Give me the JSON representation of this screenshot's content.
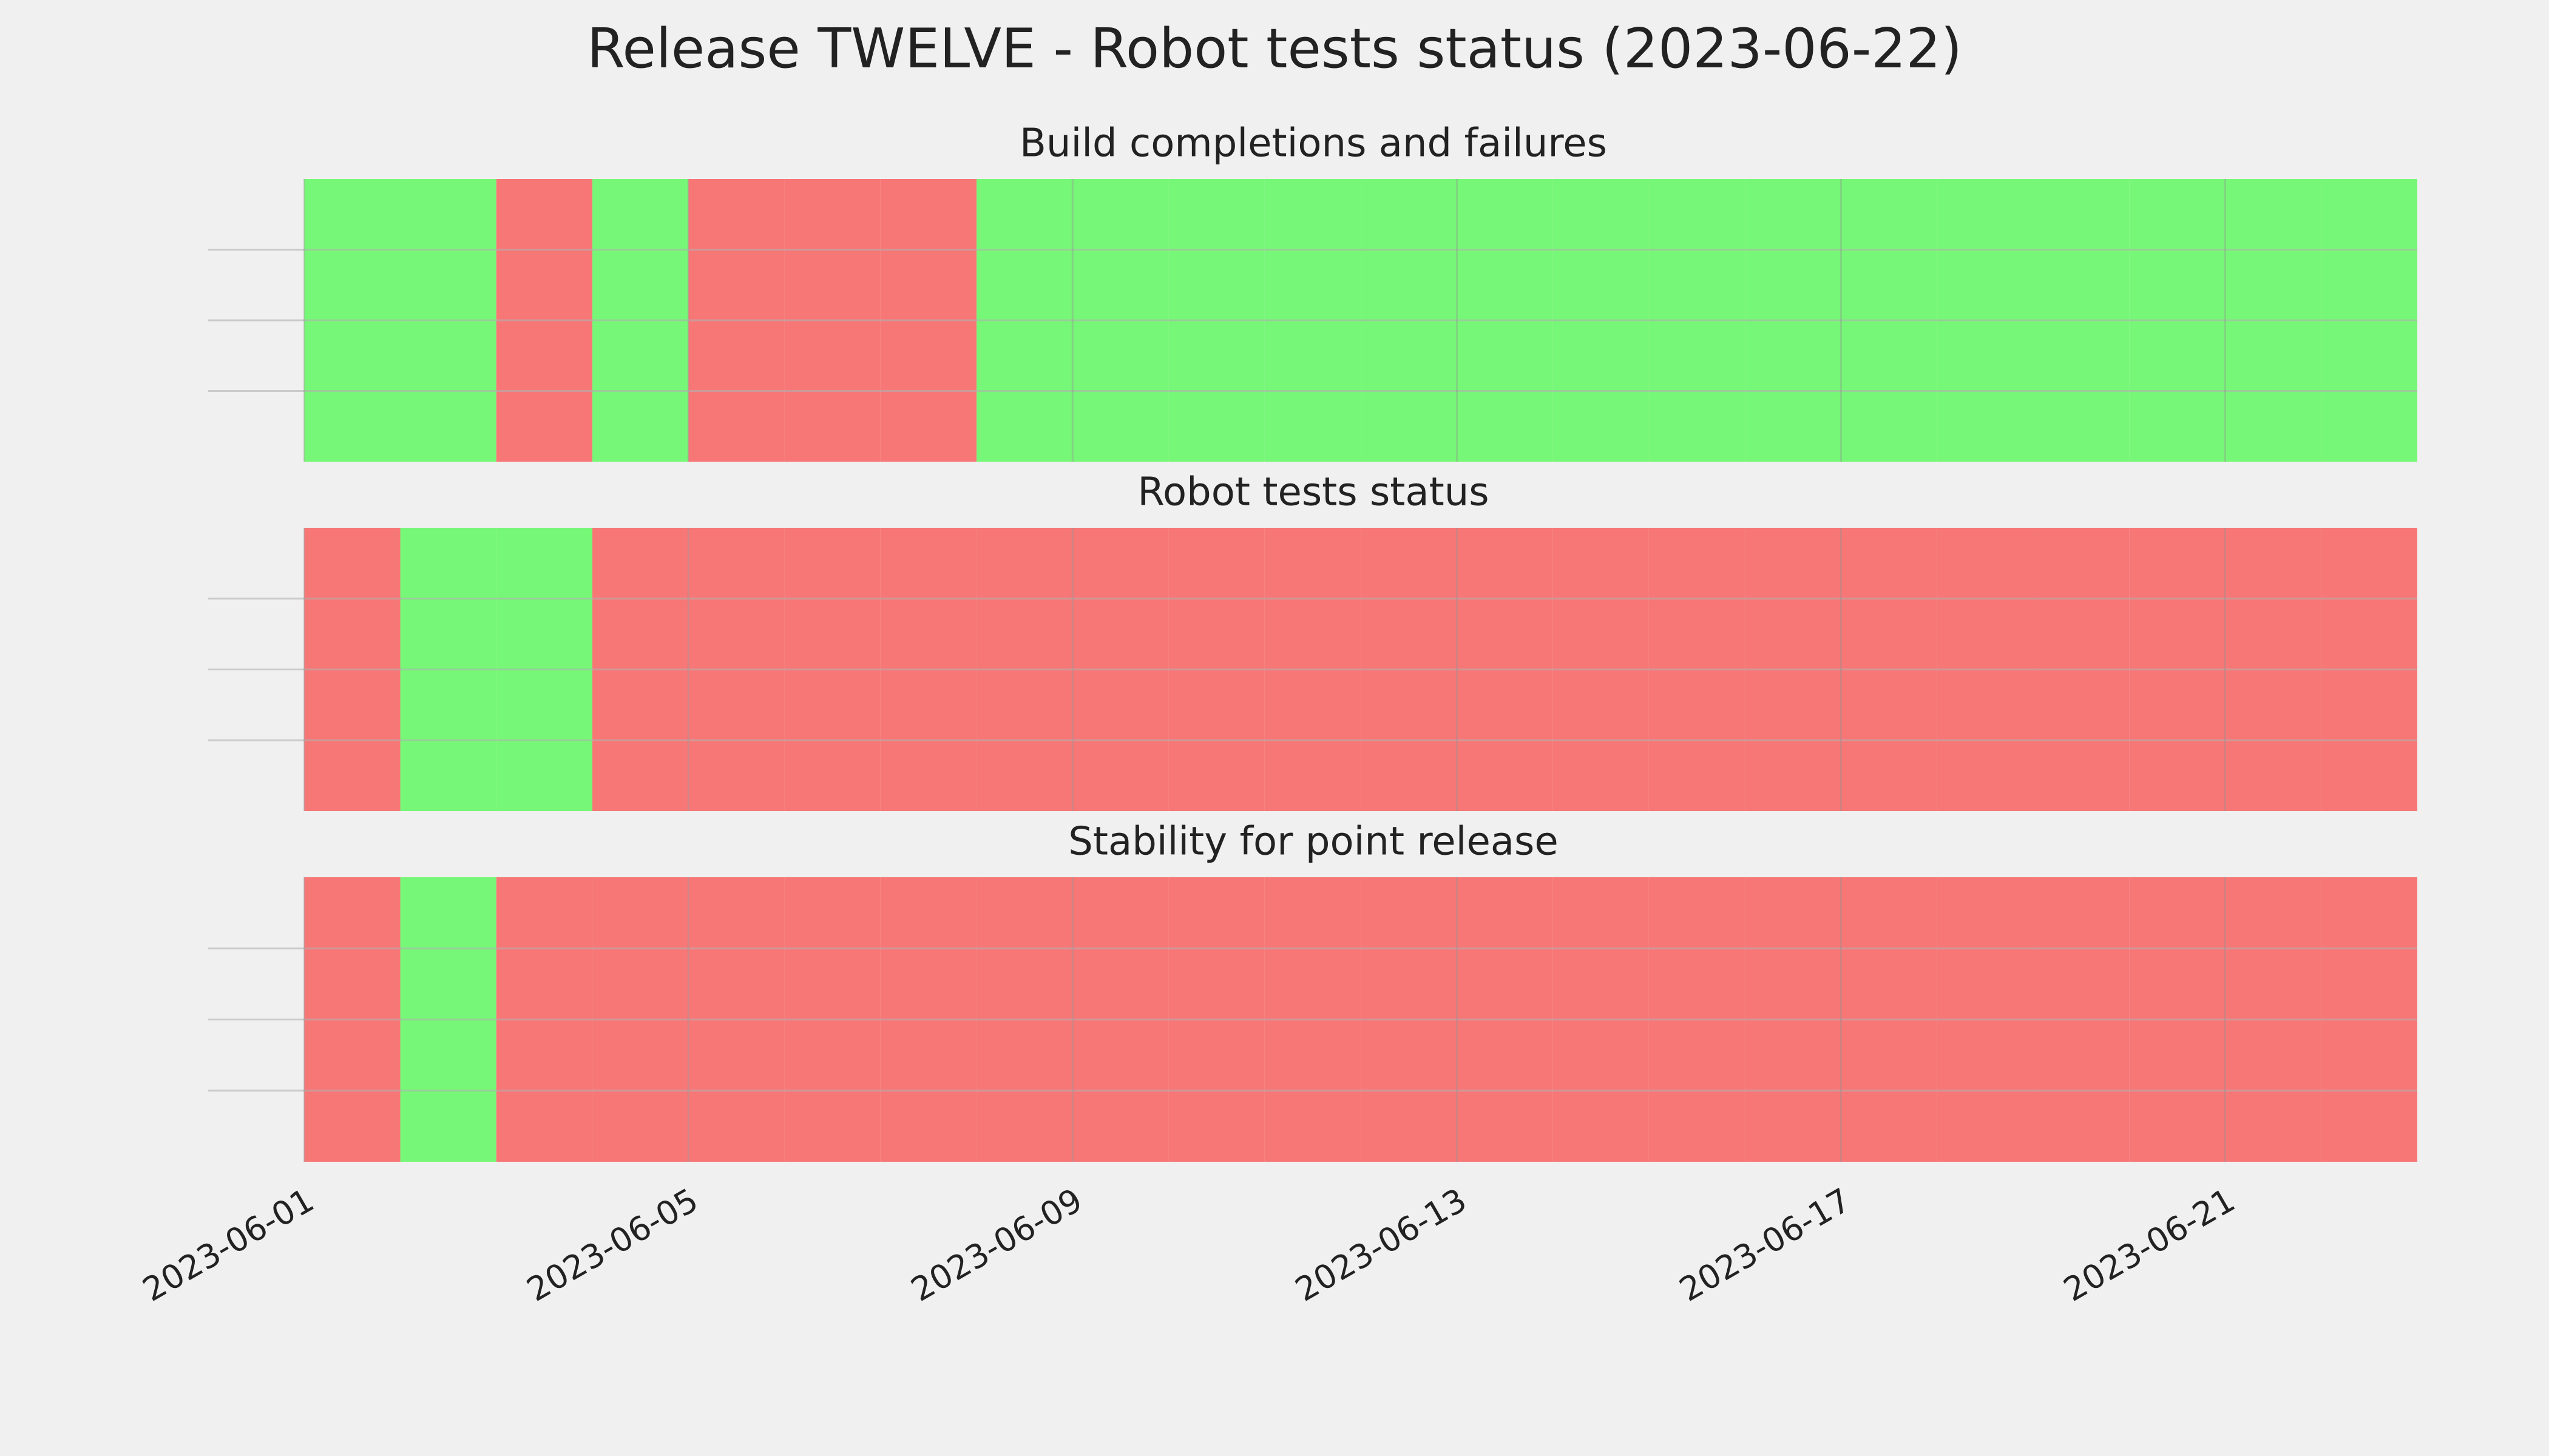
{
  "chart_data": {
    "type": "status-timeline",
    "title": "Release TWELVE - Robot tests status (2023-06-22)",
    "x": [
      "2023-06-01",
      "2023-06-02",
      "2023-06-03",
      "2023-06-04",
      "2023-06-05",
      "2023-06-06",
      "2023-06-07",
      "2023-06-08",
      "2023-06-09",
      "2023-06-10",
      "2023-06-11",
      "2023-06-12",
      "2023-06-13",
      "2023-06-14",
      "2023-06-15",
      "2023-06-16",
      "2023-06-17",
      "2023-06-18",
      "2023-06-19",
      "2023-06-20",
      "2023-06-21",
      "2023-06-22"
    ],
    "xlim": [
      "2023-05-31",
      "2023-06-23"
    ],
    "xticks": [
      "2023-06-01",
      "2023-06-05",
      "2023-06-09",
      "2023-06-13",
      "2023-06-17",
      "2023-06-21"
    ],
    "ylim": [
      0,
      1
    ],
    "yticks": [
      0.25,
      0.5,
      0.75
    ],
    "grid": true,
    "pass_color": "#77f777",
    "fail_color": "#f77777",
    "series": [
      {
        "name": "Build completions and failures",
        "values": [
          1,
          1,
          0,
          1,
          0,
          0,
          0,
          1,
          1,
          1,
          1,
          1,
          1,
          1,
          1,
          1,
          1,
          1,
          1,
          1,
          1,
          1
        ]
      },
      {
        "name": "Robot tests status",
        "values": [
          0,
          1,
          1,
          0,
          0,
          0,
          0,
          0,
          0,
          0,
          0,
          0,
          0,
          0,
          0,
          0,
          0,
          0,
          0,
          0,
          0,
          0
        ]
      },
      {
        "name": "Stability for point release",
        "values": [
          0,
          1,
          0,
          0,
          0,
          0,
          0,
          0,
          0,
          0,
          0,
          0,
          0,
          0,
          0,
          0,
          0,
          0,
          0,
          0,
          0,
          0
        ]
      }
    ]
  }
}
